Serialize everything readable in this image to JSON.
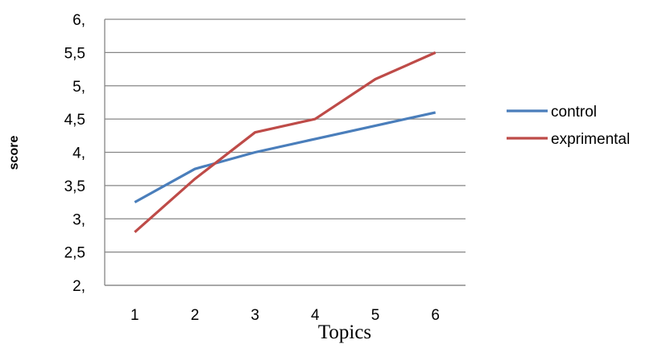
{
  "chart_data": {
    "type": "line",
    "title": "",
    "xlabel": "Topics",
    "ylabel": "score",
    "x": [
      1,
      2,
      3,
      4,
      5,
      6
    ],
    "x_tick_labels": [
      "1",
      "2",
      "3",
      "4",
      "5",
      "6"
    ],
    "ylim": [
      2,
      6
    ],
    "y_ticks": [
      2,
      2.5,
      3,
      3.5,
      4,
      4.5,
      5,
      5.5,
      6
    ],
    "y_tick_labels": [
      "2,",
      "2,5",
      "3,",
      "3,5",
      "4,",
      "4,5",
      "5,",
      "5,5",
      "6,"
    ],
    "grid": "horizontal",
    "legend_position": "right",
    "series": [
      {
        "name": "control",
        "color": "#4a7ebb",
        "values": [
          3.25,
          3.75,
          4.0,
          4.2,
          4.4,
          4.6
        ]
      },
      {
        "name": "exprimental",
        "color": "#be4b48",
        "values": [
          2.8,
          3.6,
          4.3,
          4.5,
          5.1,
          5.5
        ]
      }
    ]
  }
}
